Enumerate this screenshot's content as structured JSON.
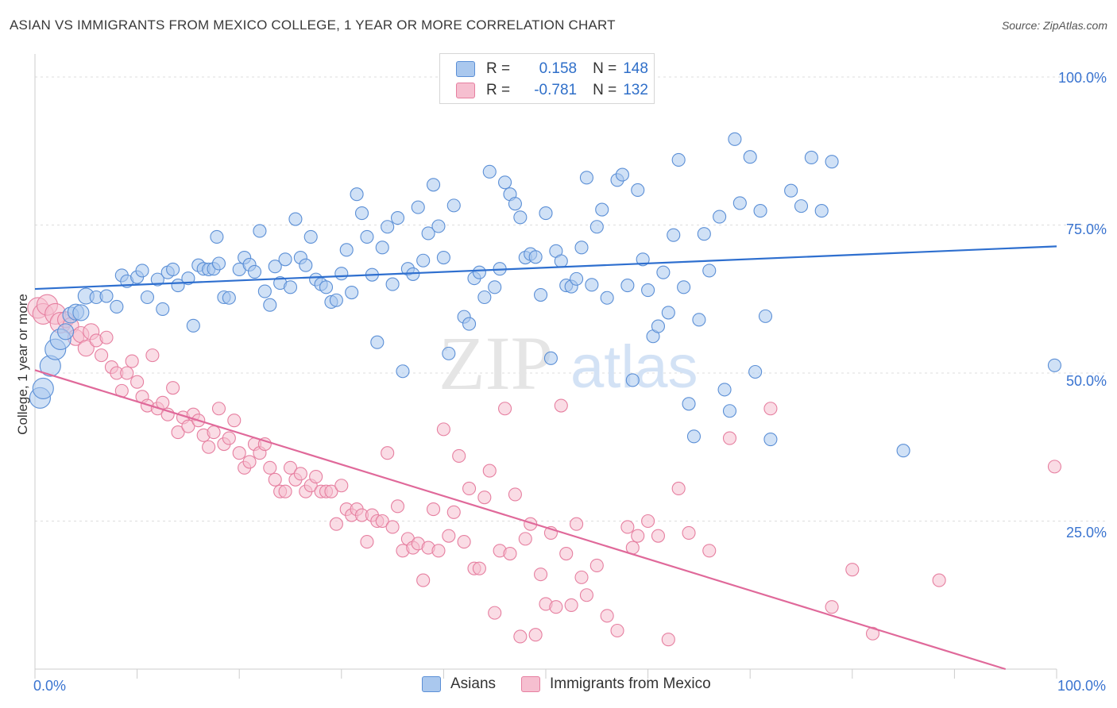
{
  "title": "ASIAN VS IMMIGRANTS FROM MEXICO COLLEGE, 1 YEAR OR MORE CORRELATION CHART",
  "source": "Source: ZipAtlas.com",
  "watermark": {
    "zip": "ZIP",
    "atlas": "atlas"
  },
  "legend": {
    "rows": [
      {
        "r_label": "R =",
        "r_value": "0.158",
        "n_label": "N =",
        "n_value": "148"
      },
      {
        "r_label": "R =",
        "r_value": "-0.781",
        "n_label": "N =",
        "n_value": "132"
      }
    ]
  },
  "bottom_legend": {
    "asians": "Asians",
    "mexico": "Immigrants from Mexico"
  },
  "colors": {
    "asian_fill": "#aac8ee",
    "asian_stroke": "#5b8fd6",
    "asian_line": "#2e6fcf",
    "mexico_fill": "#f6bfd0",
    "mexico_stroke": "#e67fa0",
    "mexico_line": "#e0699a",
    "tick_label": "#3a74d0",
    "grid": "#dddddd",
    "axis": "#cccccc"
  },
  "chart_data": {
    "type": "scatter",
    "title": "ASIAN VS IMMIGRANTS FROM MEXICO COLLEGE, 1 YEAR OR MORE CORRELATION CHART",
    "xlabel": "",
    "ylabel": "College, 1 year or more",
    "x_tick_labels": [
      "0.0%",
      "100.0%"
    ],
    "y_tick_labels": [
      "100.0%",
      "75.0%",
      "50.0%",
      "25.0%"
    ],
    "xlim": [
      0,
      100
    ],
    "ylim": [
      0,
      100
    ],
    "grid": true,
    "legend_position": "top-center",
    "series": [
      {
        "name": "Asians",
        "r": 0.158,
        "n": 148,
        "trend": {
          "x": [
            0,
            100
          ],
          "y": [
            64.2,
            71.4
          ]
        },
        "points": [
          [
            0.5,
            45.8
          ],
          [
            0.8,
            47.4
          ],
          [
            1.5,
            51.2
          ],
          [
            2,
            54
          ],
          [
            2.5,
            55.7
          ],
          [
            3,
            57
          ],
          [
            3.5,
            59.8
          ],
          [
            4,
            60.3
          ],
          [
            4.5,
            60.2
          ],
          [
            5,
            63
          ],
          [
            6,
            62.8
          ],
          [
            7,
            63
          ],
          [
            8,
            61.2
          ],
          [
            8.5,
            66.5
          ],
          [
            9,
            65.5
          ],
          [
            10,
            66.2
          ],
          [
            10.5,
            67.3
          ],
          [
            11,
            62.8
          ],
          [
            12,
            65.8
          ],
          [
            12.5,
            60.8
          ],
          [
            13,
            67
          ],
          [
            13.5,
            67.5
          ],
          [
            14,
            64.8
          ],
          [
            15,
            66
          ],
          [
            15.5,
            58
          ],
          [
            16,
            68.2
          ],
          [
            16.5,
            67.6
          ],
          [
            17,
            67.5
          ],
          [
            17.5,
            67.6
          ],
          [
            17.8,
            73
          ],
          [
            18,
            68.5
          ],
          [
            18.5,
            62.8
          ],
          [
            19,
            62.7
          ],
          [
            20,
            67.5
          ],
          [
            20.5,
            69.5
          ],
          [
            21,
            68.3
          ],
          [
            21.5,
            67.1
          ],
          [
            22,
            74
          ],
          [
            22.5,
            63.8
          ],
          [
            23,
            61.5
          ],
          [
            23.5,
            68
          ],
          [
            24,
            65.2
          ],
          [
            24.5,
            69.2
          ],
          [
            25,
            64.5
          ],
          [
            25.5,
            76
          ],
          [
            26,
            69.5
          ],
          [
            26.5,
            68.2
          ],
          [
            27,
            73
          ],
          [
            27.5,
            65.8
          ],
          [
            28,
            65
          ],
          [
            28.5,
            64.5
          ],
          [
            29,
            62
          ],
          [
            29.5,
            62.3
          ],
          [
            30,
            66.8
          ],
          [
            30.5,
            70.8
          ],
          [
            31,
            63.6
          ],
          [
            31.5,
            80.2
          ],
          [
            32,
            77
          ],
          [
            32.5,
            73
          ],
          [
            33,
            66.6
          ],
          [
            33.5,
            55.2
          ],
          [
            34,
            71.2
          ],
          [
            34.5,
            74.7
          ],
          [
            35,
            65
          ],
          [
            35.5,
            76.2
          ],
          [
            36,
            50.3
          ],
          [
            36.5,
            67.6
          ],
          [
            37,
            66.7
          ],
          [
            37.5,
            78
          ],
          [
            38,
            69
          ],
          [
            38.5,
            73.6
          ],
          [
            39,
            81.8
          ],
          [
            39.5,
            74.8
          ],
          [
            40,
            69.5
          ],
          [
            40.5,
            53.3
          ],
          [
            41,
            78.3
          ],
          [
            42,
            59.5
          ],
          [
            42.5,
            58.3
          ],
          [
            43,
            66
          ],
          [
            43.5,
            67
          ],
          [
            44,
            62.8
          ],
          [
            44.5,
            84
          ],
          [
            45,
            64.5
          ],
          [
            45.5,
            67.6
          ],
          [
            46,
            82.2
          ],
          [
            46.5,
            80.2
          ],
          [
            47,
            78.6
          ],
          [
            47.5,
            76.3
          ],
          [
            48,
            69.5
          ],
          [
            48.5,
            70.1
          ],
          [
            49,
            69.6
          ],
          [
            49.5,
            63.2
          ],
          [
            50,
            77
          ],
          [
            50.5,
            52.5
          ],
          [
            51,
            70.6
          ],
          [
            51.5,
            68.9
          ],
          [
            52,
            64.8
          ],
          [
            52.5,
            64.6
          ],
          [
            53,
            65.9
          ],
          [
            53.5,
            71.2
          ],
          [
            54,
            83
          ],
          [
            54.5,
            64.9
          ],
          [
            55,
            74.7
          ],
          [
            55.5,
            77.6
          ],
          [
            56,
            62.7
          ],
          [
            57,
            82.6
          ],
          [
            57.5,
            83.5
          ],
          [
            58,
            64.8
          ],
          [
            58.5,
            48.8
          ],
          [
            59,
            80.9
          ],
          [
            59.5,
            69.2
          ],
          [
            60,
            64
          ],
          [
            60.5,
            56.2
          ],
          [
            61,
            57.9
          ],
          [
            61.5,
            67
          ],
          [
            62,
            60.2
          ],
          [
            62.5,
            73.3
          ],
          [
            63,
            86
          ],
          [
            63.5,
            64.5
          ],
          [
            64,
            44.8
          ],
          [
            64.5,
            39.3
          ],
          [
            65,
            59
          ],
          [
            65.5,
            73.5
          ],
          [
            66,
            67.3
          ],
          [
            67,
            76.4
          ],
          [
            67.5,
            47.2
          ],
          [
            68,
            43.6
          ],
          [
            68.5,
            89.5
          ],
          [
            69,
            78.7
          ],
          [
            70,
            86.5
          ],
          [
            70.5,
            50.2
          ],
          [
            71,
            77.4
          ],
          [
            71.5,
            59.6
          ],
          [
            72,
            38.8
          ],
          [
            74,
            80.8
          ],
          [
            75,
            78.2
          ],
          [
            76,
            86.4
          ],
          [
            77,
            77.4
          ],
          [
            78,
            85.7
          ],
          [
            85,
            36.9
          ],
          [
            99.8,
            51.3
          ]
        ]
      },
      {
        "name": "Immigrants from Mexico",
        "r": -0.781,
        "n": 132,
        "trend": {
          "x": [
            0,
            95
          ],
          "y": [
            50.5,
            0
          ]
        },
        "points": [
          [
            0.3,
            61
          ],
          [
            0.8,
            60
          ],
          [
            1.2,
            61.5
          ],
          [
            2,
            60
          ],
          [
            2.5,
            58.5
          ],
          [
            3,
            59
          ],
          [
            3.5,
            58
          ],
          [
            4,
            56
          ],
          [
            4.5,
            56.5
          ],
          [
            5,
            54.2
          ],
          [
            5.5,
            57
          ],
          [
            6,
            55.5
          ],
          [
            6.5,
            53
          ],
          [
            7,
            56
          ],
          [
            7.5,
            51
          ],
          [
            8,
            50
          ],
          [
            8.5,
            47
          ],
          [
            9,
            50
          ],
          [
            9.5,
            52
          ],
          [
            10,
            48.5
          ],
          [
            10.5,
            46
          ],
          [
            11,
            44.5
          ],
          [
            11.5,
            53
          ],
          [
            12,
            44
          ],
          [
            12.5,
            45
          ],
          [
            13,
            43
          ],
          [
            13.5,
            47.5
          ],
          [
            14,
            40
          ],
          [
            14.5,
            42.5
          ],
          [
            15,
            41
          ],
          [
            15.5,
            43
          ],
          [
            16,
            42
          ],
          [
            16.5,
            39.5
          ],
          [
            17,
            37.5
          ],
          [
            17.5,
            40
          ],
          [
            18,
            44
          ],
          [
            18.5,
            38
          ],
          [
            19,
            39
          ],
          [
            19.5,
            42
          ],
          [
            20,
            36.5
          ],
          [
            20.5,
            34
          ],
          [
            21,
            35
          ],
          [
            21.5,
            38
          ],
          [
            22,
            36.5
          ],
          [
            22.5,
            38
          ],
          [
            23,
            34
          ],
          [
            23.5,
            32
          ],
          [
            24,
            30
          ],
          [
            24.5,
            30
          ],
          [
            25,
            34
          ],
          [
            25.5,
            32
          ],
          [
            26,
            33
          ],
          [
            26.5,
            30
          ],
          [
            27,
            31
          ],
          [
            27.5,
            32.5
          ],
          [
            28,
            30
          ],
          [
            28.5,
            30
          ],
          [
            29,
            30
          ],
          [
            29.5,
            24.5
          ],
          [
            30,
            31
          ],
          [
            30.5,
            27
          ],
          [
            31,
            26
          ],
          [
            31.5,
            27
          ],
          [
            32,
            26
          ],
          [
            32.5,
            21.5
          ],
          [
            33,
            26
          ],
          [
            33.5,
            25
          ],
          [
            34,
            25
          ],
          [
            34.5,
            36.5
          ],
          [
            35,
            24
          ],
          [
            35.5,
            27.5
          ],
          [
            36,
            20
          ],
          [
            36.5,
            22
          ],
          [
            37,
            20.5
          ],
          [
            37.5,
            21.2
          ],
          [
            38,
            15
          ],
          [
            38.5,
            20.5
          ],
          [
            39,
            27
          ],
          [
            39.5,
            20
          ],
          [
            40,
            40.5
          ],
          [
            40.5,
            22.5
          ],
          [
            41,
            26.5
          ],
          [
            41.5,
            36
          ],
          [
            42,
            21.5
          ],
          [
            42.5,
            30.5
          ],
          [
            43,
            17
          ],
          [
            43.5,
            17
          ],
          [
            44,
            29
          ],
          [
            44.5,
            33.5
          ],
          [
            45,
            9.5
          ],
          [
            45.5,
            20
          ],
          [
            46,
            44
          ],
          [
            46.5,
            19.5
          ],
          [
            47,
            29.5
          ],
          [
            47.5,
            5.5
          ],
          [
            48,
            22
          ],
          [
            48.5,
            24.5
          ],
          [
            49,
            5.8
          ],
          [
            49.5,
            16
          ],
          [
            50,
            11
          ],
          [
            50.5,
            23
          ],
          [
            51,
            10.5
          ],
          [
            51.5,
            44.5
          ],
          [
            52,
            19.5
          ],
          [
            52.5,
            10.8
          ],
          [
            53,
            24.5
          ],
          [
            53.5,
            15.5
          ],
          [
            54,
            12.5
          ],
          [
            55,
            17.5
          ],
          [
            56,
            9
          ],
          [
            57,
            6.5
          ],
          [
            58,
            24
          ],
          [
            58.5,
            20.5
          ],
          [
            59,
            22.5
          ],
          [
            60,
            25
          ],
          [
            61,
            22.5
          ],
          [
            62,
            5
          ],
          [
            63,
            30.5
          ],
          [
            64,
            23
          ],
          [
            66,
            20
          ],
          [
            68,
            39
          ],
          [
            72,
            44
          ],
          [
            78,
            10.5
          ],
          [
            80,
            16.8
          ],
          [
            82,
            6
          ],
          [
            88.5,
            15
          ],
          [
            99.8,
            34.2
          ]
        ]
      }
    ]
  }
}
